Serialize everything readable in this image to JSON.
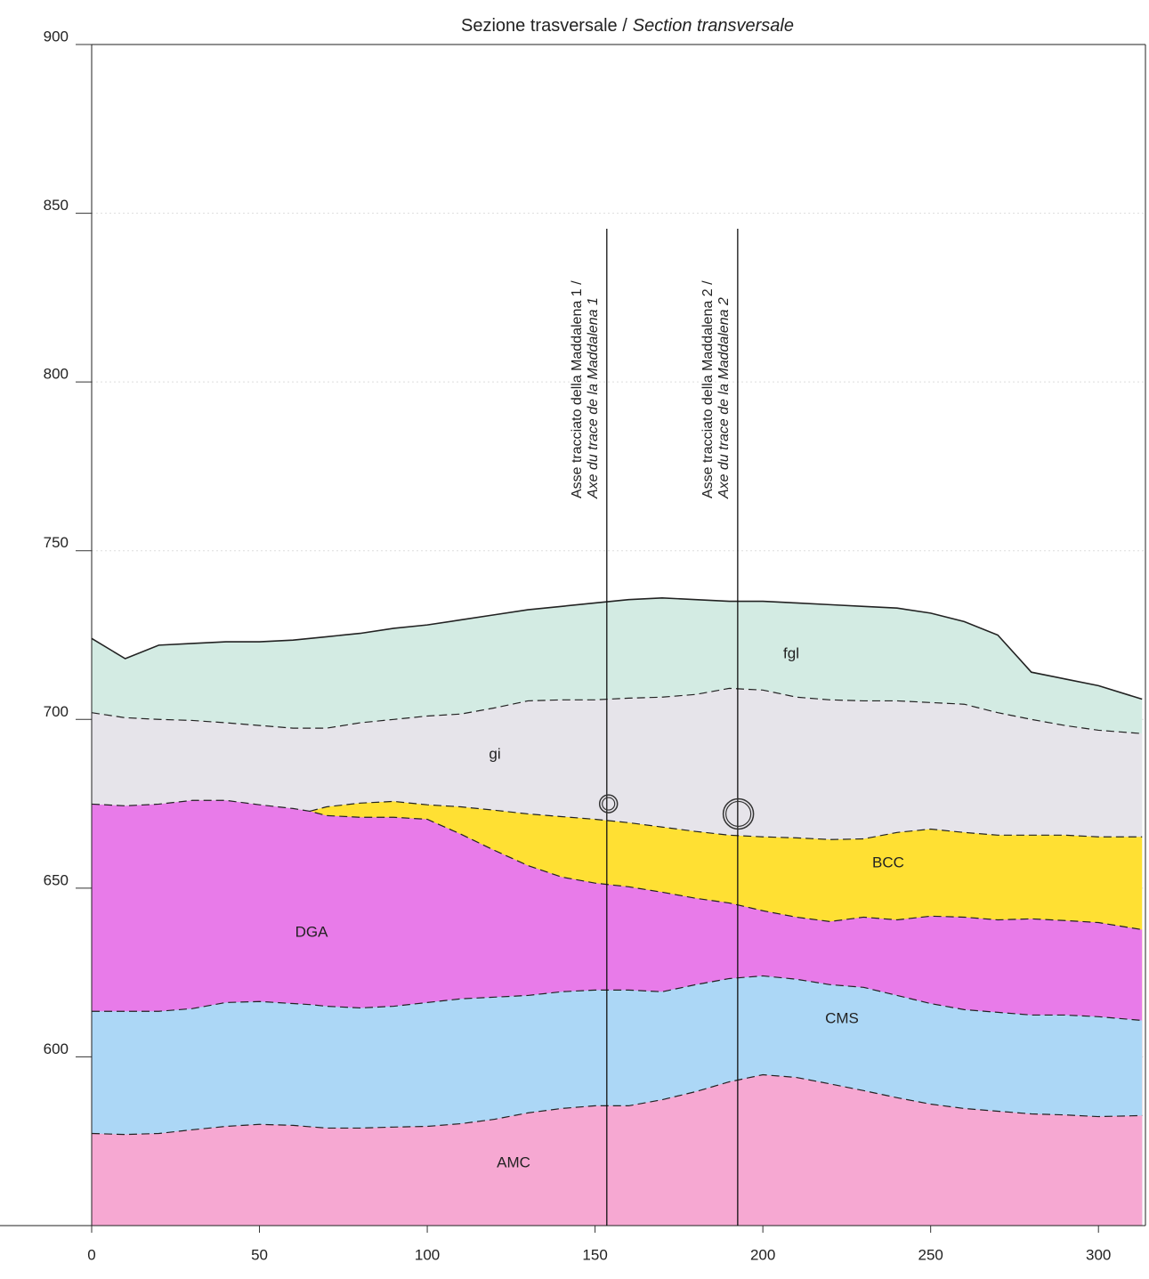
{
  "chart_data": {
    "type": "area",
    "title": [
      "Sezione trasversale /",
      "Section transversale"
    ],
    "x": [
      0,
      10,
      20,
      30,
      40,
      50,
      60,
      65,
      70,
      80,
      90,
      100,
      110,
      120,
      130,
      140,
      150,
      160,
      170,
      180,
      190,
      200,
      210,
      220,
      230,
      240,
      250,
      260,
      270,
      280,
      290,
      300,
      313
    ],
    "xlim": [
      0,
      314
    ],
    "xticks": [
      0,
      50,
      100,
      150,
      200,
      250,
      300
    ],
    "ylim": [
      550,
      900
    ],
    "yticks": [
      600,
      650,
      700,
      750,
      800,
      850,
      900
    ],
    "grid": true,
    "series": [
      {
        "name": "fgl",
        "color": "#d3ebe3",
        "line_style": "solid",
        "values": [
          724,
          718,
          722,
          722.5,
          723,
          723,
          723.5,
          724,
          724.5,
          725.5,
          727,
          728,
          729.5,
          731,
          732.5,
          733.5,
          734.5,
          735.5,
          736,
          735.5,
          735,
          735,
          734.5,
          734,
          733.5,
          733,
          731.5,
          729,
          725,
          714,
          712,
          710,
          706
        ]
      },
      {
        "name": "gi",
        "color": "#e6e4ea",
        "line_style": "dashed",
        "values": [
          702,
          700.5,
          700,
          699.7,
          699,
          698.2,
          697.4,
          697.4,
          697.4,
          699,
          700,
          701,
          701.6,
          703.4,
          705.5,
          705.8,
          705.8,
          706.3,
          706.6,
          707.4,
          709.2,
          708.7,
          706.6,
          705.8,
          705.5,
          705.5,
          705,
          704.5,
          702,
          700,
          698.2,
          696.8,
          695.8
        ]
      },
      {
        "name": "BCC",
        "color": "#ffe033",
        "line_style": "dashed",
        "values": [
          null,
          null,
          null,
          null,
          null,
          null,
          null,
          672.8,
          674.1,
          675.2,
          675.7,
          674.7,
          674.1,
          673.1,
          672,
          671.2,
          670.4,
          669.4,
          668.1,
          666.8,
          665.7,
          665.2,
          664.9,
          664.4,
          664.6,
          666.5,
          667.5,
          666.5,
          665.7,
          665.7,
          665.7,
          665.2,
          665.2
        ]
      },
      {
        "name": "DGA",
        "color": "#e87be9",
        "line_style": "dashed",
        "values": [
          674.9,
          674.4,
          674.9,
          676,
          676,
          674.7,
          673.6,
          672.8,
          671.5,
          671,
          671,
          670.4,
          666,
          661.2,
          656.7,
          653.3,
          651.5,
          650.4,
          648.8,
          647,
          645.6,
          643.3,
          641.4,
          640.1,
          641.4,
          640.6,
          641.7,
          641.4,
          640.6,
          640.9,
          640.4,
          639.8,
          637.7
        ]
      },
      {
        "name": "CMS",
        "color": "#acd7f6",
        "line_style": "dashed",
        "values": [
          613.5,
          613.5,
          613.5,
          614.3,
          616.1,
          616.4,
          615.8,
          615.5,
          615,
          614.5,
          615,
          616.1,
          617.2,
          617.7,
          618.2,
          619.3,
          619.8,
          619.8,
          619.3,
          621.4,
          623.2,
          624,
          623,
          621.4,
          620.6,
          618.2,
          615.8,
          614,
          613.2,
          612.4,
          612.4,
          611.9,
          610.8
        ]
      },
      {
        "name": "AMC",
        "color": "#f6a8d2",
        "line_style": "dashed",
        "values": [
          577.3,
          577,
          577.3,
          578.4,
          579.4,
          580,
          579.7,
          579.3,
          578.9,
          578.9,
          579.2,
          579.4,
          580.2,
          581.5,
          583.4,
          584.7,
          585.5,
          585.5,
          587.3,
          589.7,
          592.6,
          594.7,
          593.9,
          592,
          590,
          587.9,
          586,
          584.7,
          583.9,
          583.1,
          582.8,
          582.3,
          582.6
        ]
      }
    ],
    "markers": [
      {
        "x": 153.5,
        "label": [
          "Asse tracciato della Maddalena 1 /",
          "Axe du trace de la Maddalena 1"
        ]
      },
      {
        "x": 192.5,
        "label": [
          "Asse tracciato della Maddalena 2 /",
          "Axe du trace de la Maddalena 2"
        ]
      }
    ],
    "tunnels": [
      {
        "x": 154,
        "y": 675
      },
      {
        "x": 192.7,
        "y": 672
      }
    ]
  }
}
